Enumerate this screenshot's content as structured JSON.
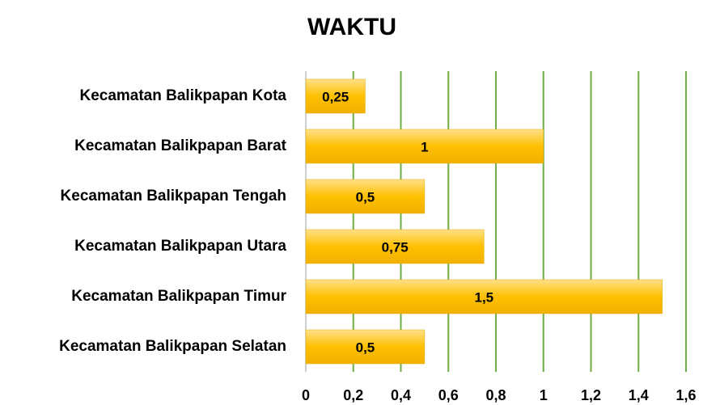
{
  "chart_data": {
    "type": "barh",
    "title": "WAKTU",
    "categories": [
      "Kecamatan Balikpapan Kota",
      "Kecamatan Balikpapan Barat",
      "Kecamatan Balikpapan Tengah",
      "Kecamatan Balikpapan Utara",
      "Kecamatan Balikpapan Timur",
      "Kecamatan Balikpapan Selatan"
    ],
    "values": [
      0.25,
      1,
      0.5,
      0.75,
      1.5,
      0.5
    ],
    "value_labels": [
      "0,25",
      "1",
      "0,5",
      "0,75",
      "1,5",
      "0,5"
    ],
    "color": "#ffc000",
    "grid_color": "#70ad47",
    "grid": true,
    "xlim": [
      0,
      1.6
    ],
    "xticks": [
      0,
      {
        "value": 0.2,
        "label": "0,2"
      },
      {
        "value": 0.4,
        "label": "0,4"
      },
      {
        "value": 0.6,
        "label": "0,6"
      },
      {
        "value": 0.8,
        "label": "0,8"
      },
      1,
      {
        "value": 1.2,
        "label": "1,2"
      },
      {
        "value": 1.4,
        "label": "1,4"
      },
      {
        "value": 1.6,
        "label": "1,6"
      }
    ]
  }
}
